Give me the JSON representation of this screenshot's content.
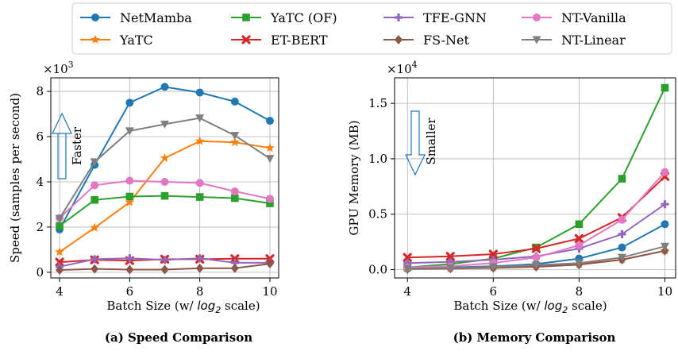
{
  "legend": [
    {
      "name": "NetMamba",
      "color": "#1f77b4",
      "marker": "circle"
    },
    {
      "name": "YaTC (OF)",
      "color": "#2ca02c",
      "marker": "square"
    },
    {
      "name": "TFE-GNN",
      "color": "#9467bd",
      "marker": "plus"
    },
    {
      "name": "NT-Vanilla",
      "color": "#e377c2",
      "marker": "circle"
    },
    {
      "name": "YaTC",
      "color": "#ff7f0e",
      "marker": "star"
    },
    {
      "name": "ET-BERT",
      "color": "#d62728",
      "marker": "x"
    },
    {
      "name": "FS-Net",
      "color": "#8c564b",
      "marker": "diamond"
    },
    {
      "name": "NT-Linear",
      "color": "#7f7f7f",
      "marker": "triangle-down"
    }
  ],
  "chart_data": [
    {
      "type": "line",
      "caption": "(a) Speed Comparison",
      "xlabel_prefix": "Batch Size (w/ ",
      "xlabel_math": "log",
      "xlabel_sub": "2",
      "xlabel_suffix": " scale)",
      "ylabel": "Speed (samples per second)",
      "exponent_base": "×10",
      "exponent_power": "3",
      "xlim": [
        3.75,
        10.25
      ],
      "ylim": [
        -0.25,
        8.6
      ],
      "xticks": [
        4,
        6,
        8,
        10
      ],
      "yticks": [
        0,
        2,
        4,
        6,
        8
      ],
      "ytick_labels": [
        "0",
        "2",
        "4",
        "6",
        "8"
      ],
      "grid": true,
      "annotation": {
        "text": "Faster",
        "direction": "up"
      },
      "x": [
        4,
        5,
        6,
        7,
        8,
        9,
        10
      ],
      "series": [
        {
          "name": "NetMamba",
          "values": [
            1.9,
            4.75,
            7.5,
            8.2,
            7.95,
            7.55,
            6.7
          ]
        },
        {
          "name": "YaTC",
          "values": [
            0.9,
            1.97,
            3.1,
            5.05,
            5.8,
            5.75,
            5.5
          ]
        },
        {
          "name": "YaTC (OF)",
          "values": [
            2.05,
            3.2,
            3.35,
            3.38,
            3.33,
            3.28,
            3.05
          ]
        },
        {
          "name": "ET-BERT",
          "values": [
            0.45,
            0.55,
            0.52,
            0.58,
            0.58,
            0.6,
            0.6
          ]
        },
        {
          "name": "TFE-GNN",
          "values": [
            0.25,
            0.58,
            0.62,
            0.55,
            0.62,
            0.42,
            0.42
          ]
        },
        {
          "name": "FS-Net",
          "values": [
            0.1,
            0.15,
            0.12,
            0.12,
            0.18,
            0.18,
            0.38
          ]
        },
        {
          "name": "NT-Vanilla",
          "values": [
            2.4,
            3.85,
            4.05,
            4.0,
            3.95,
            3.58,
            3.25
          ]
        },
        {
          "name": "NT-Linear",
          "values": [
            2.38,
            4.88,
            6.25,
            6.55,
            6.82,
            6.05,
            5.03
          ]
        }
      ]
    },
    {
      "type": "line",
      "caption": "(b) Memory Comparison",
      "xlabel_prefix": "Batch Size (w/ ",
      "xlabel_math": "log",
      "xlabel_sub": "2",
      "xlabel_suffix": " scale)",
      "ylabel": "GPU Memory (MB)",
      "exponent_base": "×10",
      "exponent_power": "4",
      "xlim": [
        3.7,
        10.25
      ],
      "ylim": [
        -0.075,
        1.73
      ],
      "xticks": [
        4,
        6,
        8,
        10
      ],
      "yticks": [
        0,
        0.5,
        1.0,
        1.5
      ],
      "ytick_labels": [
        "0.0",
        "0.5",
        "1.0",
        "1.5"
      ],
      "grid": true,
      "annotation": {
        "text": "Smaller",
        "direction": "down"
      },
      "x": [
        4,
        5,
        6,
        7,
        8,
        9,
        10
      ],
      "series": [
        {
          "name": "NetMamba",
          "values": [
            0.01,
            0.02,
            0.03,
            0.05,
            0.1,
            0.2,
            0.41
          ]
        },
        {
          "name": "YaTC",
          "values": [
            0.01,
            0.01,
            0.02,
            0.03,
            0.05,
            0.09,
            0.17
          ]
        },
        {
          "name": "YaTC (OF)",
          "values": [
            0.02,
            0.05,
            0.1,
            0.2,
            0.41,
            0.82,
            1.64
          ]
        },
        {
          "name": "ET-BERT",
          "values": [
            0.11,
            0.12,
            0.14,
            0.19,
            0.28,
            0.47,
            0.84
          ]
        },
        {
          "name": "TFE-GNN",
          "values": [
            0.06,
            0.07,
            0.09,
            0.12,
            0.19,
            0.32,
            0.59
          ]
        },
        {
          "name": "FS-Net",
          "values": [
            0.005,
            0.01,
            0.015,
            0.025,
            0.045,
            0.09,
            0.17
          ]
        },
        {
          "name": "NT-Vanilla",
          "values": [
            0.02,
            0.03,
            0.06,
            0.11,
            0.22,
            0.45,
            0.88
          ]
        },
        {
          "name": "NT-Linear",
          "values": [
            0.01,
            0.015,
            0.025,
            0.04,
            0.06,
            0.11,
            0.21
          ]
        }
      ]
    }
  ]
}
